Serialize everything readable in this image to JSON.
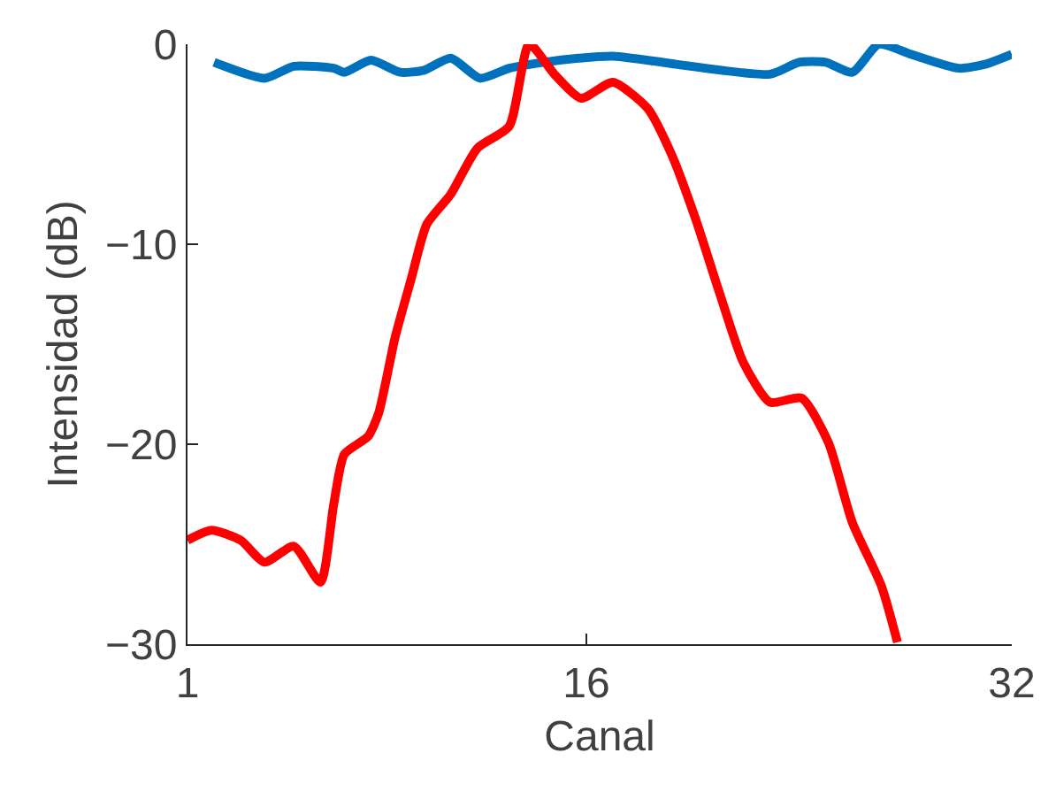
{
  "chart_data": {
    "type": "line",
    "xlabel": "Canal",
    "ylabel": "Intensidad (dB)",
    "xlim": [
      1,
      32
    ],
    "xticks": [
      1,
      16,
      32
    ],
    "ylim": [
      -30,
      0
    ],
    "yticks": [
      -30,
      -20,
      -10,
      0
    ],
    "series": [
      {
        "color": "#0072bd",
        "x": [
          2,
          3.9,
          5,
          6.5,
          6.9,
          7.9,
          9,
          9.9,
          10.9,
          12,
          13.1,
          14.4,
          15.7,
          17,
          22.9,
          24,
          25,
          26,
          27,
          28.2,
          30,
          31,
          32
        ],
        "values": [
          -0.9,
          -1.7,
          -1.1,
          -1.2,
          -1.4,
          -0.8,
          -1.4,
          -1.3,
          -0.7,
          -1.7,
          -1.2,
          -0.9,
          -0.7,
          -0.6,
          -1.5,
          -0.9,
          -0.9,
          -1.4,
          0,
          -0.5,
          -1.2,
          -1,
          -0.5
        ]
      },
      {
        "color": "#ff0000",
        "x": [
          1,
          1.9,
          3,
          3.9,
          5,
          6,
          6.5,
          6.9,
          7.8,
          8.2,
          8.8,
          9.4,
          10,
          10.9,
          11.9,
          13.1,
          13.85,
          14.8,
          15.8,
          17,
          18.3,
          19.2,
          20.1,
          21,
          21.9,
          22.9,
          24.1,
          25.1,
          26,
          27.1,
          27.7
        ],
        "values": [
          -24.8,
          -24.3,
          -24.8,
          -25.9,
          -25.1,
          -26.9,
          -23,
          -20.5,
          -19.6,
          -18.4,
          -14.7,
          -11.8,
          -9,
          -7.5,
          -5.2,
          -4.1,
          0,
          -1.5,
          -2.7,
          -1.9,
          -3.2,
          -5.5,
          -8.7,
          -12.4,
          -15.9,
          -17.9,
          -17.7,
          -19.9,
          -23.9,
          -27.1,
          -29.9
        ]
      }
    ]
  }
}
